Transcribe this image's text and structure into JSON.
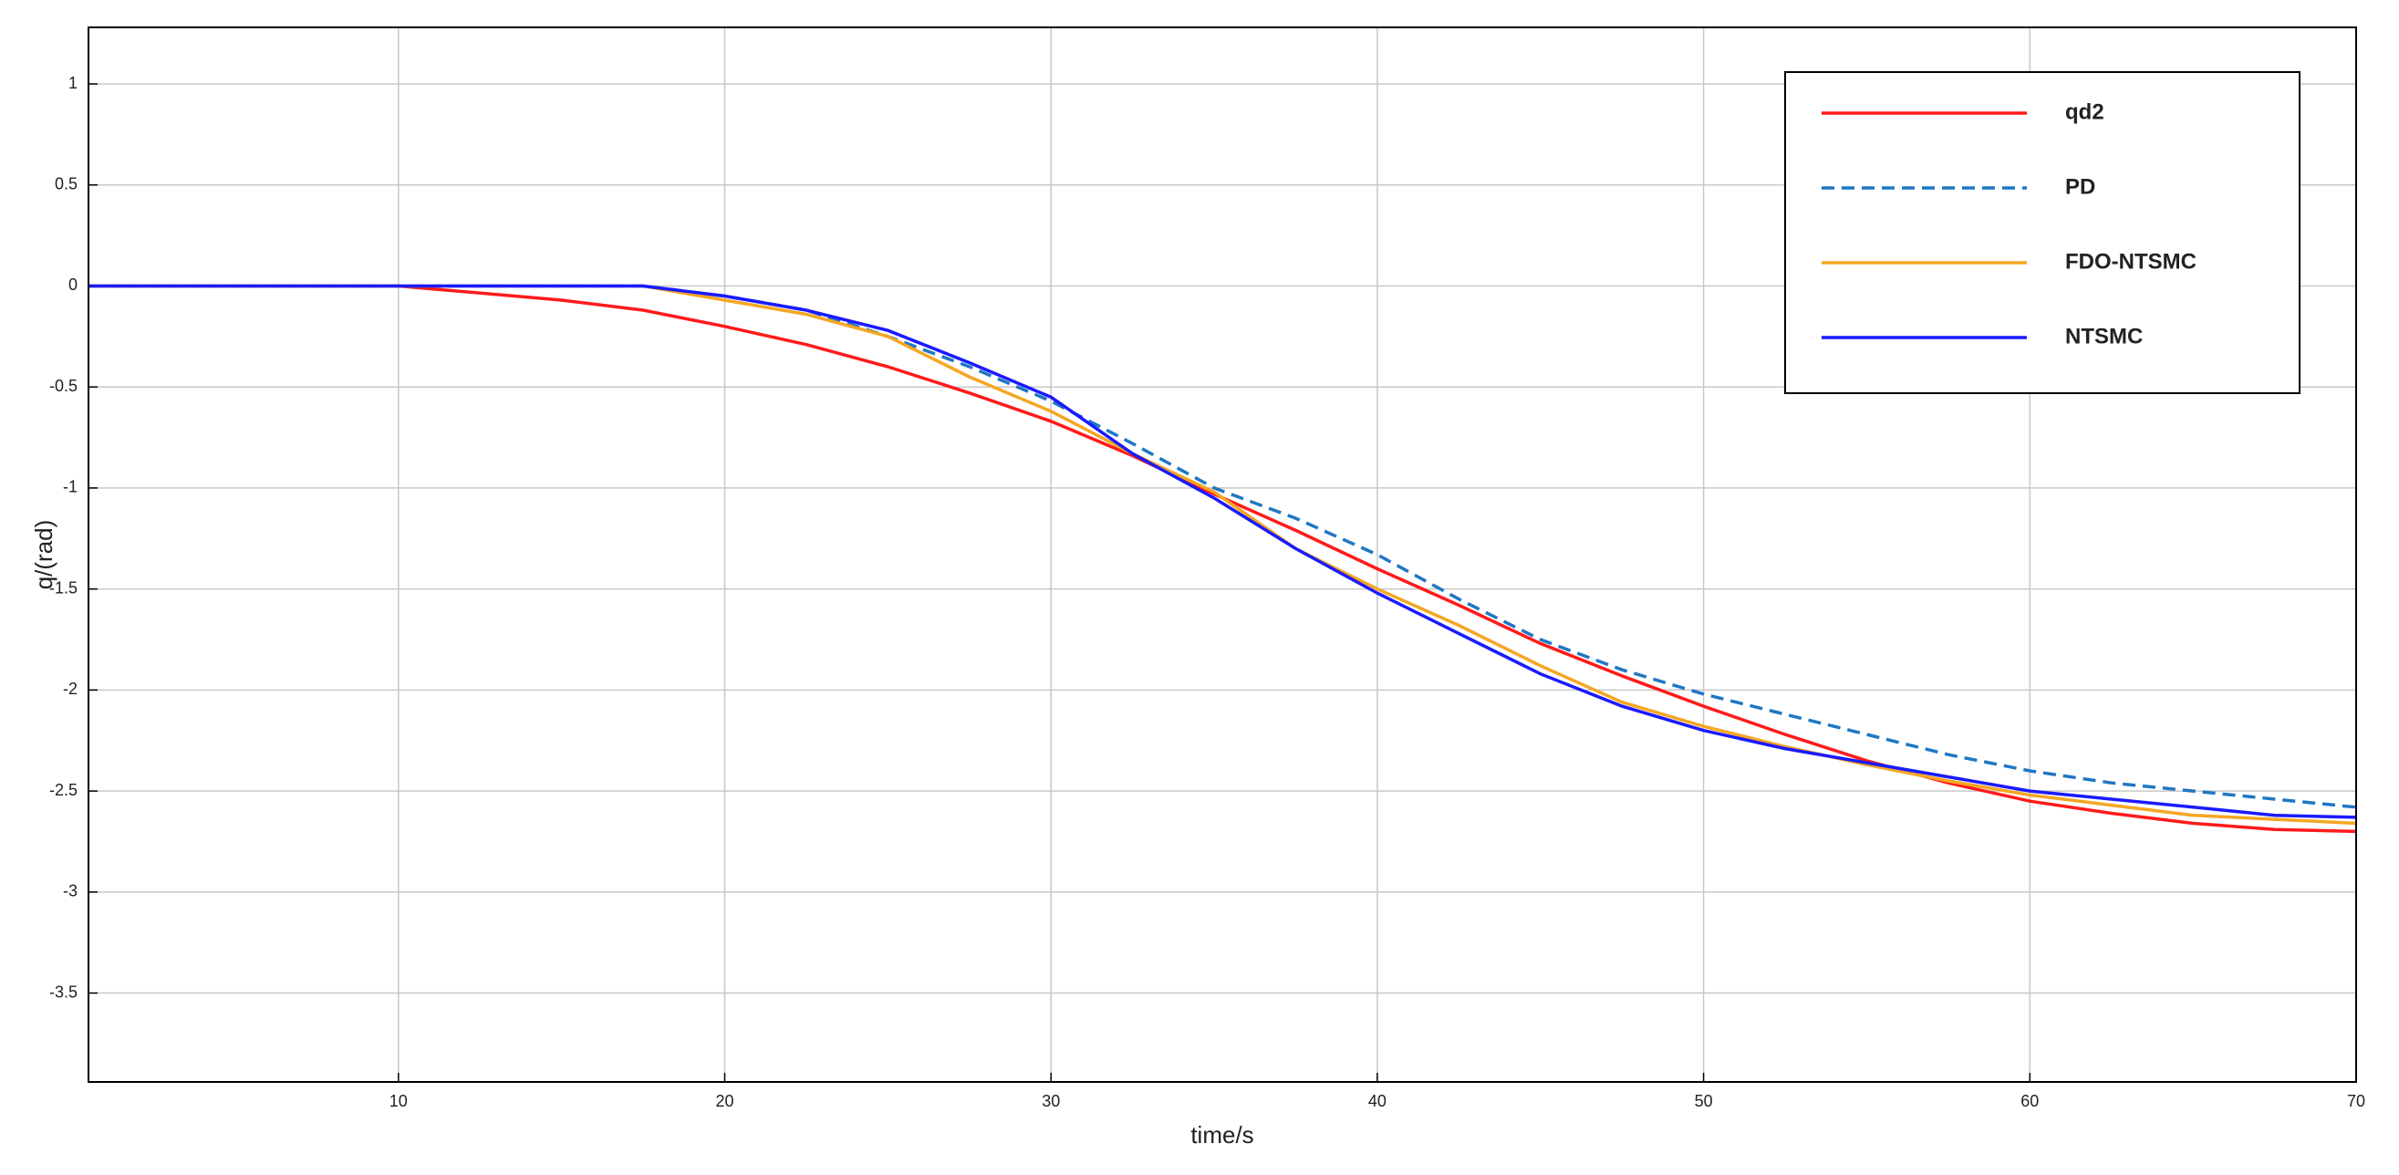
{
  "chart_data": {
    "type": "line",
    "x_label": "time/s",
    "y_label": "q/(rad)",
    "x": [
      0.5,
      5,
      10,
      15,
      17.5,
      20,
      22.5,
      25,
      27.5,
      30,
      32.5,
      35,
      37.5,
      40,
      42.5,
      45,
      47.5,
      50,
      52.5,
      55,
      57.5,
      60,
      62.5,
      65,
      67.5,
      70
    ],
    "series": [
      {
        "name": "qd2",
        "color": "#ff1a1a",
        "dashed": false,
        "values": [
          0,
          0,
          0,
          -0.07,
          -0.12,
          -0.2,
          -0.29,
          -0.4,
          -0.53,
          -0.67,
          -0.84,
          -1.03,
          -1.21,
          -1.4,
          -1.58,
          -1.77,
          -1.93,
          -2.08,
          -2.22,
          -2.35,
          -2.46,
          -2.55,
          -2.61,
          -2.66,
          -2.69,
          -2.7
        ]
      },
      {
        "name": "PD",
        "color": "#1f77c4",
        "dashed": true,
        "values": [
          0,
          0,
          0,
          0,
          0,
          -0.05,
          -0.12,
          -0.25,
          -0.4,
          -0.57,
          -0.78,
          -1.0,
          -1.15,
          -1.33,
          -1.55,
          -1.75,
          -1.9,
          -2.02,
          -2.12,
          -2.22,
          -2.32,
          -2.4,
          -2.46,
          -2.5,
          -2.54,
          -2.58
        ]
      },
      {
        "name": "FDO-NTSMC",
        "color": "#f5a623",
        "dashed": false,
        "values": [
          0,
          0,
          0,
          0,
          0,
          -0.07,
          -0.14,
          -0.25,
          -0.45,
          -0.62,
          -0.83,
          -1.02,
          -1.3,
          -1.5,
          -1.68,
          -1.88,
          -2.06,
          -2.18,
          -2.28,
          -2.37,
          -2.45,
          -2.52,
          -2.57,
          -2.62,
          -2.64,
          -2.66
        ]
      },
      {
        "name": "NTSMC",
        "color": "#1a1aff",
        "dashed": false,
        "values": [
          0,
          0,
          0,
          0,
          0,
          -0.05,
          -0.12,
          -0.22,
          -0.38,
          -0.55,
          -0.83,
          -1.05,
          -1.3,
          -1.52,
          -1.72,
          -1.92,
          -2.08,
          -2.2,
          -2.29,
          -2.36,
          -2.43,
          -2.5,
          -2.54,
          -2.58,
          -2.62,
          -2.63
        ]
      }
    ],
    "xlim": [
      0.5,
      70
    ],
    "ylim": [
      -3.94,
      1.28
    ],
    "xticks": [
      10,
      20,
      30,
      40,
      50,
      60,
      70
    ],
    "yticks": [
      1,
      0.5,
      0,
      -0.5,
      -1,
      -1.5,
      -2,
      -2.5,
      -3,
      -3.5
    ],
    "grid": true,
    "legend": "upper right"
  }
}
